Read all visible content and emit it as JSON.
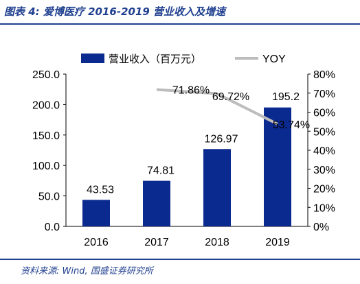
{
  "figure": {
    "title": "图表 4:  爱博医疗 2016-2019 营业收入及增速",
    "source": "资料来源:  Wind,  国盛证券研究所"
  },
  "chart_data": {
    "type": "bar",
    "categories": [
      "2016",
      "2017",
      "2018",
      "2019"
    ],
    "series": [
      {
        "name": "营业收入（百万元）",
        "type": "bar",
        "axis": "left",
        "color": "#0b2a8f",
        "values": [
          43.53,
          74.81,
          126.97,
          195.2
        ],
        "labels": [
          "43.53",
          "74.81",
          "126.97",
          "195.2"
        ]
      },
      {
        "name": "YOY",
        "type": "line",
        "axis": "right",
        "color": "#bdbdbd",
        "values": [
          null,
          71.86,
          69.72,
          53.74
        ],
        "labels": [
          "",
          "71.86%",
          "69.72%",
          "53.74%"
        ]
      }
    ],
    "y_left": {
      "lim": [
        0,
        250
      ],
      "ticks": [
        "0.0",
        "50.0",
        "100.0",
        "150.0",
        "200.0",
        "250.0"
      ]
    },
    "y_right": {
      "lim": [
        0,
        80
      ],
      "ticks": [
        "0%",
        "10%",
        "20%",
        "30%",
        "40%",
        "50%",
        "60%",
        "70%",
        "80%"
      ]
    },
    "legend_position": "top",
    "grid": false
  }
}
